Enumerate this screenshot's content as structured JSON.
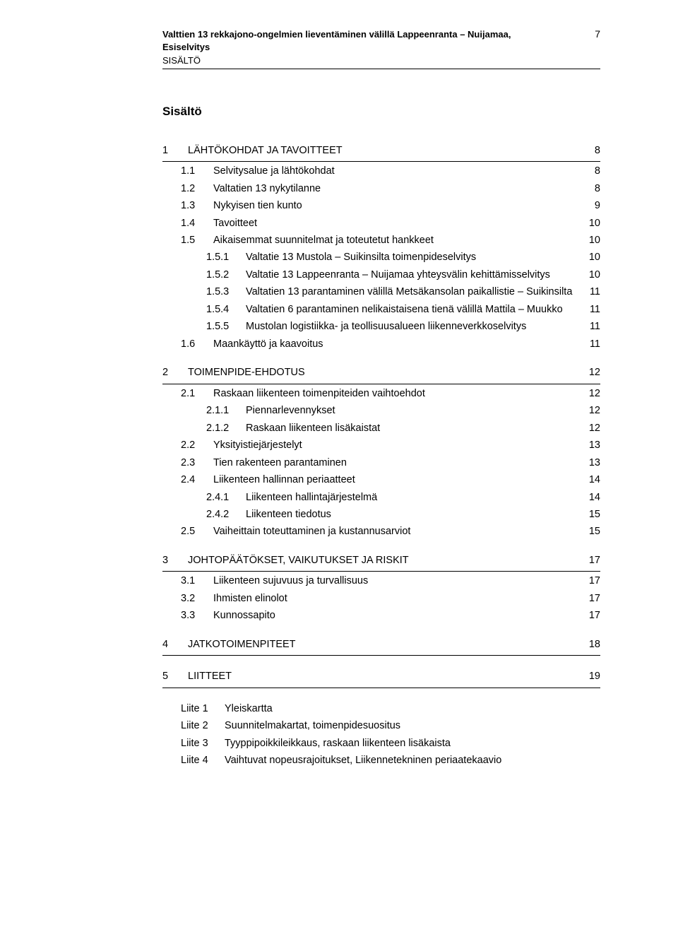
{
  "header": {
    "title_line1": "Valttien 13 rekkajono-ongelmien lieventäminen välillä Lappeenranta – Nuijamaa,",
    "title_line2": "Esiselvitys",
    "subtitle": "SISÄLTÖ",
    "page_number": "7"
  },
  "toc_title": "Sisältö",
  "sections": [
    {
      "num": "1",
      "label": "LÄHTÖKOHDAT JA TAVOITTEET",
      "page": "8",
      "children": [
        {
          "num": "1.1",
          "label": "Selvitysalue ja lähtökohdat",
          "page": "8"
        },
        {
          "num": "1.2",
          "label": "Valtatien 13 nykytilanne",
          "page": "8"
        },
        {
          "num": "1.3",
          "label": "Nykyisen tien kunto",
          "page": "9"
        },
        {
          "num": "1.4",
          "label": "Tavoitteet",
          "page": "10"
        },
        {
          "num": "1.5",
          "label": "Aikaisemmat suunnitelmat ja toteutetut hankkeet",
          "page": "10",
          "children": [
            {
              "num": "1.5.1",
              "label": "Valtatie 13 Mustola – Suikinsilta toimenpideselvitys",
              "page": "10"
            },
            {
              "num": "1.5.2",
              "label": "Valtatie 13 Lappeenranta – Nuijamaa yhteysvälin kehittämisselvitys",
              "page": "10"
            },
            {
              "num": "1.5.3",
              "label": "Valtatien 13 parantaminen välillä Metsäkansolan paikallistie – Suikinsilta",
              "page": "11"
            },
            {
              "num": "1.5.4",
              "label": "Valtatien 6 parantaminen nelikaistaisena tienä välillä Mattila – Muukko",
              "page": "11"
            },
            {
              "num": "1.5.5",
              "label": "Mustolan logistiikka- ja teollisuusalueen liikenneverkkoselvitys",
              "page": "11"
            }
          ]
        },
        {
          "num": "1.6",
          "label": "Maankäyttö ja kaavoitus",
          "page": "11"
        }
      ]
    },
    {
      "num": "2",
      "label": "TOIMENPIDE-EHDOTUS",
      "page": "12",
      "children": [
        {
          "num": "2.1",
          "label": "Raskaan liikenteen toimenpiteiden vaihtoehdot",
          "page": "12",
          "children": [
            {
              "num": "2.1.1",
              "label": "Piennarlevennykset",
              "page": "12"
            },
            {
              "num": "2.1.2",
              "label": "Raskaan liikenteen lisäkaistat",
              "page": "12"
            }
          ]
        },
        {
          "num": "2.2",
          "label": "Yksityistiejärjestelyt",
          "page": "13"
        },
        {
          "num": "2.3",
          "label": "Tien rakenteen parantaminen",
          "page": "13"
        },
        {
          "num": "2.4",
          "label": "Liikenteen hallinnan periaatteet",
          "page": "14",
          "children": [
            {
              "num": "2.4.1",
              "label": "Liikenteen hallintajärjestelmä",
              "page": "14"
            },
            {
              "num": "2.4.2",
              "label": "Liikenteen tiedotus",
              "page": "15"
            }
          ]
        },
        {
          "num": "2.5",
          "label": "Vaiheittain toteuttaminen ja kustannusarviot",
          "page": "15"
        }
      ]
    },
    {
      "num": "3",
      "label": "JOHTOPÄÄTÖKSET, VAIKUTUKSET JA RISKIT",
      "page": "17",
      "children": [
        {
          "num": "3.1",
          "label": "Liikenteen sujuvuus ja turvallisuus",
          "page": "17"
        },
        {
          "num": "3.2",
          "label": "Ihmisten elinolot",
          "page": "17"
        },
        {
          "num": "3.3",
          "label": "Kunnossapito",
          "page": "17"
        }
      ]
    },
    {
      "num": "4",
      "label": "JATKOTOIMENPITEET",
      "page": "18"
    },
    {
      "num": "5",
      "label": "LIITTEET",
      "page": "19"
    }
  ],
  "appendices": [
    {
      "num": "Liite 1",
      "label": "Yleiskartta"
    },
    {
      "num": "Liite 2",
      "label": "Suunnitelmakartat, toimenpidesuositus"
    },
    {
      "num": "Liite 3",
      "label": "Tyyppipoikkileikkaus, raskaan liikenteen lisäkaista"
    },
    {
      "num": "Liite 4",
      "label": "Vaihtuvat nopeusrajoitukset, Liikennetekninen periaatekaavio"
    }
  ]
}
